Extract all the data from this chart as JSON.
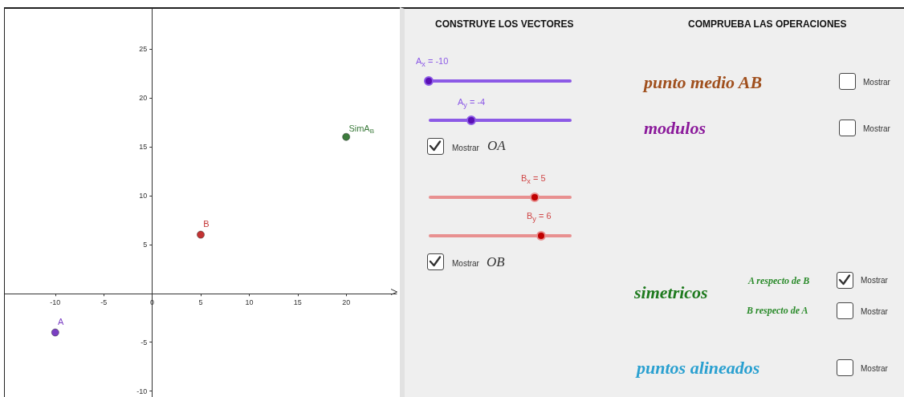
{
  "chart_data": [
    {
      "type": "scatter",
      "xlim": [
        -15.2,
        25.2
      ],
      "ylim": [
        -10.6,
        29.1
      ],
      "xticks": [
        -10,
        -5,
        0,
        5,
        10,
        15,
        20
      ],
      "yticks": [
        -10,
        -5,
        5,
        10,
        15,
        20,
        25
      ],
      "grid": false,
      "legend": false,
      "marker": "circle",
      "series": [
        {
          "name": "A",
          "color": "#5a0fb4",
          "x": [
            -10
          ],
          "values": [
            -4
          ]
        },
        {
          "name": "B",
          "color": "#b40000",
          "x": [
            5
          ],
          "values": [
            6
          ]
        },
        {
          "name": "SimA$_{B}$",
          "color": "#0b5a0b",
          "x": [
            20
          ],
          "values": [
            16
          ]
        }
      ]
    },
    {
      "type": "other",
      "annotations": [
        "CONSTRUYE LOS VECTORES",
        "COMPRUEBA LAS OPERACIONES",
        "A$_{x}$ = -10",
        "A$_{y}$ = -4",
        "Mostrar",
        "OA⃗",
        "B$_{x}$ = 5",
        "B$_{y}$ = 6",
        "Mostrar",
        "OB⃗",
        "punto medio AB",
        "Mostrar",
        "modulos",
        "Mostrar",
        "simetricos",
        "A respecto de B",
        "Mostrar",
        "B respecto de A",
        "Mostrar",
        "puntos alineados",
        "Mostrar"
      ]
    }
  ]
}
